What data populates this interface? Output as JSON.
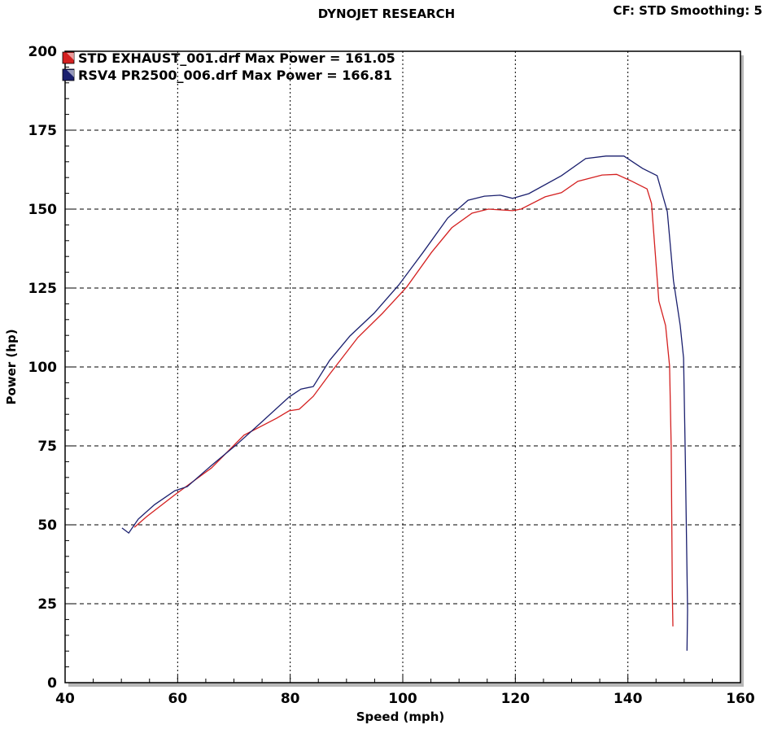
{
  "header": {
    "title": "DYNOJET RESEARCH",
    "settings": "CF: STD  Smoothing: 5"
  },
  "chart_data": {
    "type": "line",
    "title": "DYNOJET RESEARCH",
    "xlabel": "Speed (mph)",
    "ylabel": "Power (hp)",
    "xlim": [
      40,
      160
    ],
    "ylim": [
      0,
      200
    ],
    "xticks": [
      40,
      60,
      80,
      100,
      120,
      140,
      160
    ],
    "yticks": [
      0,
      25,
      50,
      75,
      100,
      125,
      150,
      175,
      200
    ],
    "grid": true,
    "legend_placement": "top-left",
    "series": [
      {
        "name": "STD EXHAUST_001.drf Max Power = 161.05",
        "color": "#d42020",
        "x": [
          52.3,
          54.5,
          59.5,
          66.0,
          71.8,
          77.6,
          79.8,
          81.6,
          84.1,
          87.0,
          92.0,
          96.4,
          100.7,
          105.1,
          108.7,
          112.3,
          115.2,
          119.5,
          121.0,
          125.3,
          128.2,
          131.1,
          135.4,
          138.0,
          140.5,
          143.4,
          144.2,
          145.5,
          146.7,
          147.4,
          147.7,
          147.9,
          148.0
        ],
        "y": [
          49.2,
          52.6,
          59.5,
          68.0,
          78.4,
          83.8,
          86.1,
          86.6,
          90.7,
          97.7,
          109.3,
          117.0,
          125.3,
          136.3,
          144.1,
          148.7,
          150.0,
          149.5,
          150.0,
          153.9,
          155.2,
          158.8,
          160.8,
          161.0,
          159.0,
          156.4,
          151.8,
          120.9,
          113.1,
          100.3,
          74.5,
          28.1,
          17.8
        ]
      },
      {
        "name": "RSV4 PR2500_006.drf Max Power = 166.81",
        "color": "#1a1f6e",
        "x": [
          50.1,
          51.3,
          53.0,
          55.9,
          59.5,
          61.7,
          66.0,
          70.4,
          74.7,
          79.8,
          81.9,
          84.1,
          87.0,
          90.6,
          94.9,
          99.3,
          103.6,
          108.0,
          111.6,
          114.5,
          117.3,
          119.5,
          122.4,
          128.2,
          132.5,
          136.1,
          139.3,
          142.6,
          145.2,
          147.0,
          148.1,
          149.3,
          149.9,
          150.2,
          150.6,
          150.5
        ],
        "y": [
          49.0,
          47.4,
          51.8,
          56.4,
          60.8,
          62.1,
          68.8,
          75.3,
          82.2,
          90.5,
          93.0,
          93.8,
          102.1,
          109.8,
          117.0,
          126.0,
          136.3,
          147.2,
          152.8,
          154.1,
          154.4,
          153.4,
          154.9,
          160.6,
          166.0,
          166.8,
          166.8,
          162.9,
          160.6,
          149.2,
          127.3,
          113.1,
          102.8,
          71.9,
          22.9,
          10.1
        ]
      }
    ]
  }
}
